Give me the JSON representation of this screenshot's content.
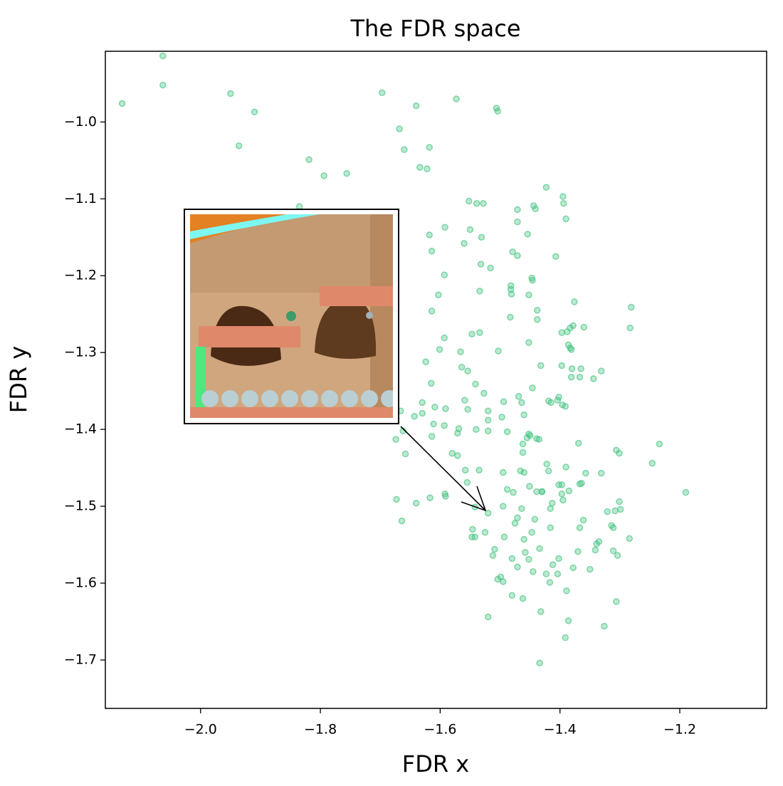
{
  "chart_data": {
    "type": "scatter",
    "title": "The FDR space",
    "x_label": "FDR x",
    "y_label": "FDR y",
    "xlim": [
      -2.159,
      -1.055
    ],
    "ylim": [
      -1.763,
      -0.908
    ],
    "xticks": [
      {
        "value": -2.0,
        "label": "−2.0"
      },
      {
        "value": -1.8,
        "label": "−1.8"
      },
      {
        "value": -1.6,
        "label": "−1.6"
      },
      {
        "value": -1.4,
        "label": "−1.4"
      },
      {
        "value": -1.2,
        "label": "−1.2"
      }
    ],
    "yticks": [
      {
        "value": -1.0,
        "label": "−1.0"
      },
      {
        "value": -1.1,
        "label": "−1.1"
      },
      {
        "value": -1.2,
        "label": "−1.2"
      },
      {
        "value": -1.3,
        "label": "−1.3"
      },
      {
        "value": -1.4,
        "label": "−1.4"
      },
      {
        "value": -1.5,
        "label": "−1.5"
      },
      {
        "value": -1.6,
        "label": "−1.6"
      },
      {
        "value": -1.7,
        "label": "−1.7"
      }
    ],
    "color": "#3cc07a",
    "x": [
      -2.131,
      -2.063,
      -2.063,
      -1.95,
      -1.91,
      -1.936,
      -1.819,
      -1.794,
      -1.756,
      -1.835,
      -1.697,
      -1.64,
      -1.573,
      -1.506,
      -1.504,
      -1.668,
      -1.66,
      -1.618,
      -1.634,
      -1.622,
      -1.423,
      -1.395,
      -1.394,
      -1.39,
      -1.444,
      -1.441,
      -1.471,
      -1.471,
      -1.552,
      -1.539,
      -1.528,
      -1.55,
      -1.531,
      -1.56,
      -1.592,
      -1.618,
      -1.614,
      -1.454,
      -1.479,
      -1.471,
      -1.407,
      -1.532,
      -1.516,
      -1.447,
      -1.446,
      -1.593,
      -1.482,
      -1.482,
      -1.481,
      -1.603,
      -1.534,
      -1.452,
      -1.376,
      -1.281,
      -1.614,
      -1.438,
      -1.483,
      -1.438,
      -1.378,
      -1.383,
      -1.388,
      -1.397,
      -1.36,
      -1.283,
      -1.547,
      -1.534,
      -1.593,
      -1.452,
      -1.386,
      -1.383,
      -1.381,
      -1.566,
      -1.601,
      -1.503,
      -1.432,
      -1.397,
      -1.624,
      -1.564,
      -1.554,
      -1.38,
      -1.381,
      -1.365,
      -1.367,
      -1.331,
      -1.344,
      -1.541,
      -1.615,
      -1.446,
      -1.527,
      -1.402,
      -1.404,
      -1.415,
      -1.419,
      -1.396,
      -1.391,
      -1.469,
      -1.464,
      -1.494,
      -1.559,
      -1.554,
      -1.63,
      -1.63,
      -1.591,
      -1.609,
      -1.52,
      -1.52,
      -1.666,
      -1.643,
      -1.46,
      -1.497,
      -1.611,
      -1.593,
      -1.569,
      -1.571,
      -1.54,
      -1.52,
      -1.488,
      -1.452,
      -1.455,
      -1.45,
      -1.439,
      -1.435,
      -1.662,
      -1.614,
      -1.674,
      -1.369,
      -1.234,
      -1.462,
      -1.462,
      -1.658,
      -1.58,
      -1.571,
      -1.306,
      -1.301,
      -1.246,
      -1.39,
      -1.422,
      -1.419,
      -1.558,
      -1.535,
      -1.495,
      -1.466,
      -1.46,
      -1.357,
      -1.331,
      -1.451,
      -1.43,
      -1.402,
      -1.397,
      -1.367,
      -1.364,
      -1.385,
      -1.397,
      -1.555,
      -1.488,
      -1.478,
      -1.439,
      -1.43,
      -1.617,
      -1.592,
      -1.591,
      -1.673,
      -1.19,
      -1.64,
      -1.542,
      -1.52,
      -1.495,
      -1.413,
      -1.416,
      -1.395,
      -1.464,
      -1.301,
      -1.299,
      -1.308,
      -1.321,
      -1.361,
      -1.367,
      -1.471,
      -1.475,
      -1.442,
      -1.664,
      -1.525,
      -1.546,
      -1.547,
      -1.542,
      -1.416,
      -1.311,
      -1.314,
      -1.284,
      -1.447,
      -1.493,
      -1.46,
      -1.335,
      -1.339,
      -1.341,
      -1.509,
      -1.512,
      -1.434,
      -1.458,
      -1.37,
      -1.311,
      -1.304,
      -1.48,
      -1.452,
      -1.402,
      -1.412,
      -1.471,
      -1.378,
      -1.35,
      -1.445,
      -1.423,
      -1.404,
      -1.499,
      -1.495,
      -1.504,
      -1.417,
      -1.389,
      -1.48,
      -1.462,
      -1.306,
      -1.432,
      -1.52,
      -1.386,
      -1.326,
      -1.391,
      -1.434
    ],
    "y": [
      -0.976,
      -0.914,
      -0.952,
      -0.963,
      -0.987,
      -1.031,
      -1.049,
      -1.07,
      -1.067,
      -1.11,
      -0.962,
      -0.979,
      -0.97,
      -0.982,
      -0.986,
      -1.009,
      -1.036,
      -1.033,
      -1.059,
      -1.061,
      -1.085,
      -1.097,
      -1.106,
      -1.126,
      -1.109,
      -1.113,
      -1.114,
      -1.13,
      -1.103,
      -1.106,
      -1.106,
      -1.14,
      -1.15,
      -1.158,
      -1.137,
      -1.147,
      -1.168,
      -1.146,
      -1.169,
      -1.174,
      -1.175,
      -1.185,
      -1.19,
      -1.203,
      -1.206,
      -1.199,
      -1.213,
      -1.218,
      -1.224,
      -1.225,
      -1.22,
      -1.225,
      -1.234,
      -1.241,
      -1.246,
      -1.245,
      -1.254,
      -1.257,
      -1.265,
      -1.268,
      -1.273,
      -1.274,
      -1.267,
      -1.268,
      -1.276,
      -1.274,
      -1.281,
      -1.287,
      -1.29,
      -1.294,
      -1.296,
      -1.299,
      -1.296,
      -1.298,
      -1.317,
      -1.317,
      -1.312,
      -1.319,
      -1.324,
      -1.321,
      -1.332,
      -1.321,
      -1.332,
      -1.324,
      -1.334,
      -1.341,
      -1.34,
      -1.346,
      -1.353,
      -1.358,
      -1.362,
      -1.365,
      -1.363,
      -1.368,
      -1.37,
      -1.357,
      -1.365,
      -1.364,
      -1.362,
      -1.374,
      -1.365,
      -1.379,
      -1.373,
      -1.371,
      -1.376,
      -1.388,
      -1.376,
      -1.383,
      -1.381,
      -1.384,
      -1.393,
      -1.395,
      -1.399,
      -1.405,
      -1.4,
      -1.402,
      -1.403,
      -1.406,
      -1.411,
      -1.408,
      -1.412,
      -1.413,
      -1.402,
      -1.409,
      -1.413,
      -1.418,
      -1.419,
      -1.419,
      -1.43,
      -1.432,
      -1.431,
      -1.434,
      -1.427,
      -1.431,
      -1.444,
      -1.449,
      -1.445,
      -1.454,
      -1.453,
      -1.453,
      -1.456,
      -1.454,
      -1.456,
      -1.457,
      -1.457,
      -1.474,
      -1.481,
      -1.472,
      -1.472,
      -1.471,
      -1.47,
      -1.48,
      -1.484,
      -1.469,
      -1.478,
      -1.482,
      -1.481,
      -1.481,
      -1.489,
      -1.484,
      -1.487,
      -1.491,
      -1.482,
      -1.496,
      -1.501,
      -1.509,
      -1.5,
      -1.496,
      -1.503,
      -1.492,
      -1.503,
      -1.494,
      -1.504,
      -1.506,
      -1.507,
      -1.518,
      -1.528,
      -1.515,
      -1.522,
      -1.517,
      -1.519,
      -1.534,
      -1.53,
      -1.54,
      -1.54,
      -1.528,
      -1.528,
      -1.525,
      -1.542,
      -1.534,
      -1.54,
      -1.543,
      -1.546,
      -1.549,
      -1.557,
      -1.556,
      -1.564,
      -1.555,
      -1.56,
      -1.559,
      -1.558,
      -1.564,
      -1.568,
      -1.569,
      -1.568,
      -1.576,
      -1.579,
      -1.58,
      -1.582,
      -1.585,
      -1.588,
      -1.588,
      -1.592,
      -1.598,
      -1.595,
      -1.599,
      -1.61,
      -1.616,
      -1.62,
      -1.624,
      -1.637,
      -1.644,
      -1.649,
      -1.656,
      -1.671,
      -1.704
    ]
  }
}
